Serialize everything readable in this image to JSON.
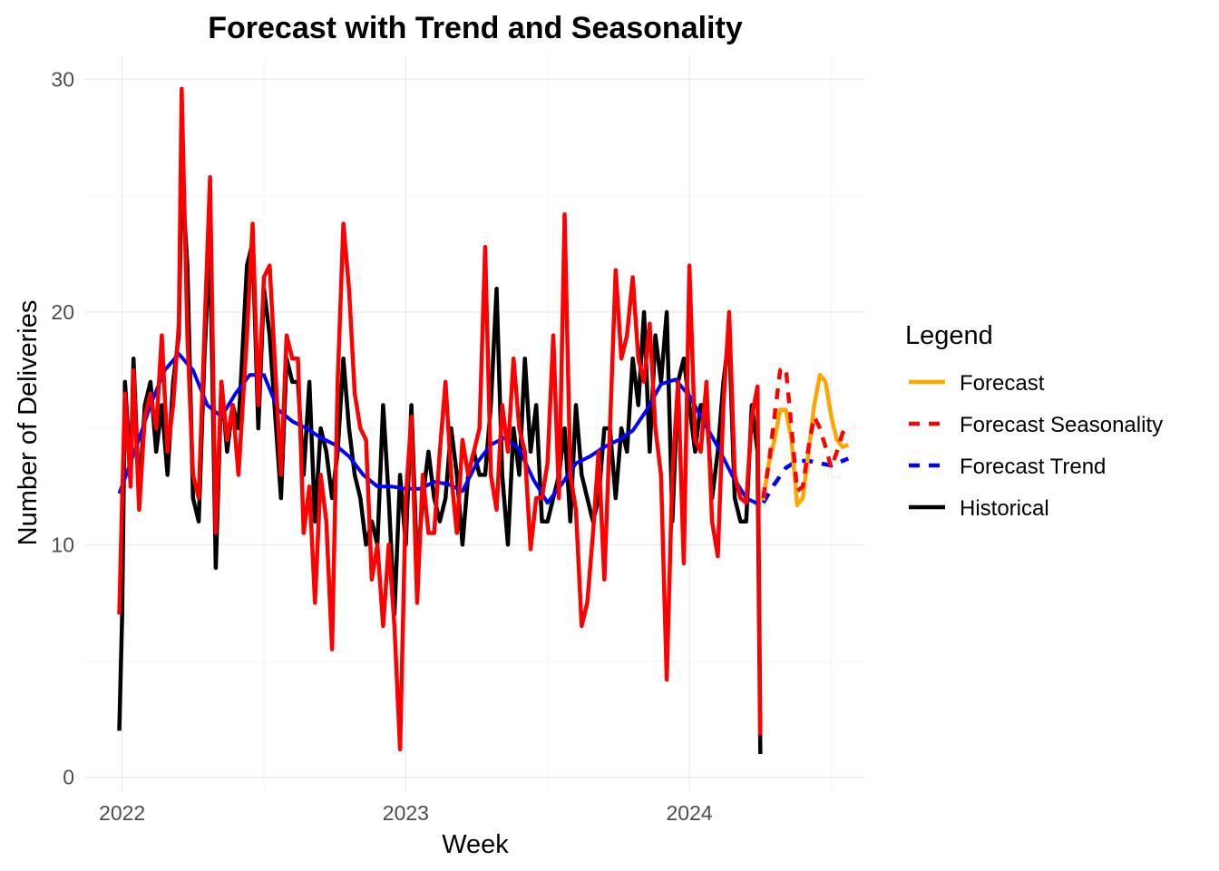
{
  "chart_data": {
    "type": "line",
    "title": "Forecast with Trend and Seasonality",
    "xlabel": "Week",
    "ylabel": "Number of Deliveries",
    "x_ticks": [
      "2022",
      "2023",
      "2024"
    ],
    "x_tick_positions": [
      2022.0,
      2023.0,
      2024.0
    ],
    "y_ticks": [
      0,
      10,
      20,
      30
    ],
    "xlim": [
      2021.87,
      2024.62
    ],
    "ylim": [
      -0.6,
      31.0
    ],
    "grid": true,
    "legend": {
      "title": "Legend",
      "placement": "right",
      "entries": [
        {
          "label": "Forecast",
          "color": "#FFA500",
          "dash": "solid"
        },
        {
          "label": "Forecast Seasonality",
          "color": "#FF0000",
          "dash": "dashed"
        },
        {
          "label": "Forecast Trend",
          "color": "#0000FF",
          "dash": "dashed"
        },
        {
          "label": "Historical",
          "color": "#000000",
          "dash": "solid"
        }
      ]
    },
    "historical": {
      "color": "#000000",
      "points": [
        [
          2021.99,
          2
        ],
        [
          2022.0,
          7
        ],
        [
          2022.01,
          17
        ],
        [
          2022.03,
          13
        ],
        [
          2022.04,
          18
        ],
        [
          2022.06,
          12
        ],
        [
          2022.08,
          16
        ],
        [
          2022.1,
          17
        ],
        [
          2022.12,
          14
        ],
        [
          2022.14,
          16
        ],
        [
          2022.16,
          13
        ],
        [
          2022.18,
          17
        ],
        [
          2022.2,
          19
        ],
        [
          2022.21,
          26
        ],
        [
          2022.23,
          22
        ],
        [
          2022.25,
          12
        ],
        [
          2022.27,
          11
        ],
        [
          2022.29,
          18
        ],
        [
          2022.31,
          23
        ],
        [
          2022.33,
          9
        ],
        [
          2022.35,
          17
        ],
        [
          2022.37,
          14
        ],
        [
          2022.39,
          16
        ],
        [
          2022.41,
          15
        ],
        [
          2022.44,
          22
        ],
        [
          2022.46,
          23
        ],
        [
          2022.48,
          15
        ],
        [
          2022.5,
          21
        ],
        [
          2022.52,
          19
        ],
        [
          2022.56,
          12
        ],
        [
          2022.58,
          18
        ],
        [
          2022.6,
          17
        ],
        [
          2022.62,
          17
        ],
        [
          2022.64,
          13
        ],
        [
          2022.66,
          17
        ],
        [
          2022.68,
          11
        ],
        [
          2022.7,
          15
        ],
        [
          2022.72,
          14
        ],
        [
          2022.74,
          12
        ],
        [
          2022.76,
          14
        ],
        [
          2022.78,
          18
        ],
        [
          2022.8,
          15
        ],
        [
          2022.82,
          13
        ],
        [
          2022.84,
          12
        ],
        [
          2022.86,
          10
        ],
        [
          2022.88,
          11
        ],
        [
          2022.9,
          10
        ],
        [
          2022.92,
          16
        ],
        [
          2022.94,
          12
        ],
        [
          2022.96,
          7
        ],
        [
          2022.98,
          13
        ],
        [
          2023.0,
          10
        ],
        [
          2023.02,
          16
        ],
        [
          2023.04,
          9
        ],
        [
          2023.06,
          12
        ],
        [
          2023.08,
          14
        ],
        [
          2023.1,
          12
        ],
        [
          2023.12,
          11
        ],
        [
          2023.14,
          12
        ],
        [
          2023.16,
          15
        ],
        [
          2023.18,
          13
        ],
        [
          2023.2,
          10
        ],
        [
          2023.22,
          13
        ],
        [
          2023.24,
          14
        ],
        [
          2023.26,
          13
        ],
        [
          2023.28,
          13
        ],
        [
          2023.3,
          16
        ],
        [
          2023.32,
          21
        ],
        [
          2023.34,
          13
        ],
        [
          2023.36,
          10
        ],
        [
          2023.38,
          15
        ],
        [
          2023.4,
          13
        ],
        [
          2023.42,
          18
        ],
        [
          2023.44,
          14
        ],
        [
          2023.46,
          16
        ],
        [
          2023.48,
          11
        ],
        [
          2023.5,
          11
        ],
        [
          2023.52,
          12
        ],
        [
          2023.54,
          13
        ],
        [
          2023.56,
          15
        ],
        [
          2023.58,
          11
        ],
        [
          2023.6,
          16
        ],
        [
          2023.62,
          13
        ],
        [
          2023.64,
          12
        ],
        [
          2023.66,
          11
        ],
        [
          2023.68,
          12
        ],
        [
          2023.7,
          15
        ],
        [
          2023.72,
          15
        ],
        [
          2023.74,
          12
        ],
        [
          2023.76,
          15
        ],
        [
          2023.78,
          14
        ],
        [
          2023.8,
          18
        ],
        [
          2023.82,
          16
        ],
        [
          2023.84,
          20
        ],
        [
          2023.86,
          14
        ],
        [
          2023.88,
          19
        ],
        [
          2023.9,
          17
        ],
        [
          2023.92,
          20
        ],
        [
          2023.94,
          11
        ],
        [
          2023.96,
          17
        ],
        [
          2023.98,
          18
        ],
        [
          2024.0,
          16
        ],
        [
          2024.02,
          14
        ],
        [
          2024.04,
          16
        ],
        [
          2024.06,
          16
        ],
        [
          2024.08,
          12
        ],
        [
          2024.1,
          14
        ],
        [
          2024.12,
          17
        ],
        [
          2024.14,
          19
        ],
        [
          2024.16,
          12
        ],
        [
          2024.18,
          11
        ],
        [
          2024.2,
          11
        ],
        [
          2024.22,
          16
        ],
        [
          2024.24,
          14
        ],
        [
          2024.25,
          1
        ]
      ]
    },
    "seasonality_history": {
      "color": "#FF0000",
      "points": [
        [
          2021.99,
          7
        ],
        [
          2022.0,
          12
        ],
        [
          2022.01,
          16.5
        ],
        [
          2022.03,
          12.5
        ],
        [
          2022.04,
          17.5
        ],
        [
          2022.06,
          11.5
        ],
        [
          2022.08,
          15.5
        ],
        [
          2022.1,
          16.5
        ],
        [
          2022.12,
          15
        ],
        [
          2022.14,
          19
        ],
        [
          2022.16,
          14
        ],
        [
          2022.18,
          16
        ],
        [
          2022.2,
          19.5
        ],
        [
          2022.21,
          29.6
        ],
        [
          2022.23,
          19
        ],
        [
          2022.25,
          13
        ],
        [
          2022.27,
          12
        ],
        [
          2022.29,
          19
        ],
        [
          2022.31,
          25.8
        ],
        [
          2022.33,
          10.5
        ],
        [
          2022.35,
          17
        ],
        [
          2022.37,
          14.5
        ],
        [
          2022.39,
          16
        ],
        [
          2022.41,
          13
        ],
        [
          2022.44,
          19
        ],
        [
          2022.46,
          23.8
        ],
        [
          2022.48,
          16
        ],
        [
          2022.5,
          21.5
        ],
        [
          2022.52,
          22
        ],
        [
          2022.56,
          13
        ],
        [
          2022.58,
          19
        ],
        [
          2022.6,
          18
        ],
        [
          2022.62,
          18
        ],
        [
          2022.64,
          10.5
        ],
        [
          2022.66,
          12.5
        ],
        [
          2022.68,
          7.5
        ],
        [
          2022.7,
          13
        ],
        [
          2022.72,
          11
        ],
        [
          2022.74,
          5.5
        ],
        [
          2022.76,
          17
        ],
        [
          2022.78,
          23.8
        ],
        [
          2022.8,
          21
        ],
        [
          2022.82,
          16.5
        ],
        [
          2022.84,
          15
        ],
        [
          2022.86,
          14.5
        ],
        [
          2022.88,
          8.5
        ],
        [
          2022.9,
          10
        ],
        [
          2022.92,
          6.5
        ],
        [
          2022.94,
          10
        ],
        [
          2022.96,
          6.5
        ],
        [
          2022.98,
          1.2
        ],
        [
          2023.0,
          12
        ],
        [
          2023.02,
          15.5
        ],
        [
          2023.04,
          7.5
        ],
        [
          2023.06,
          13
        ],
        [
          2023.08,
          10.5
        ],
        [
          2023.1,
          10.5
        ],
        [
          2023.12,
          14
        ],
        [
          2023.14,
          17
        ],
        [
          2023.16,
          13
        ],
        [
          2023.18,
          10.5
        ],
        [
          2023.2,
          14.5
        ],
        [
          2023.22,
          13
        ],
        [
          2023.24,
          14
        ],
        [
          2023.26,
          15
        ],
        [
          2023.28,
          22.8
        ],
        [
          2023.3,
          13
        ],
        [
          2023.32,
          11.5
        ],
        [
          2023.34,
          16
        ],
        [
          2023.36,
          14
        ],
        [
          2023.38,
          18
        ],
        [
          2023.4,
          15
        ],
        [
          2023.42,
          14
        ],
        [
          2023.44,
          9.8
        ],
        [
          2023.46,
          12
        ],
        [
          2023.48,
          12
        ],
        [
          2023.5,
          13.5
        ],
        [
          2023.52,
          19
        ],
        [
          2023.54,
          12
        ],
        [
          2023.56,
          24.2
        ],
        [
          2023.58,
          13
        ],
        [
          2023.6,
          11.5
        ],
        [
          2023.62,
          6.5
        ],
        [
          2023.64,
          7.5
        ],
        [
          2023.66,
          10.5
        ],
        [
          2023.68,
          14
        ],
        [
          2023.7,
          8.5
        ],
        [
          2023.72,
          15
        ],
        [
          2023.74,
          21.8
        ],
        [
          2023.76,
          18
        ],
        [
          2023.78,
          19
        ],
        [
          2023.8,
          21.5
        ],
        [
          2023.82,
          18
        ],
        [
          2023.84,
          17
        ],
        [
          2023.86,
          19.5
        ],
        [
          2023.88,
          15
        ],
        [
          2023.9,
          13
        ],
        [
          2023.92,
          4.2
        ],
        [
          2023.94,
          13
        ],
        [
          2023.96,
          17
        ],
        [
          2023.98,
          9.2
        ],
        [
          2024.0,
          22
        ],
        [
          2024.02,
          14.5
        ],
        [
          2024.04,
          14
        ],
        [
          2024.06,
          17
        ],
        [
          2024.08,
          11
        ],
        [
          2024.1,
          9.5
        ],
        [
          2024.12,
          16
        ],
        [
          2024.14,
          20
        ],
        [
          2024.16,
          13
        ],
        [
          2024.18,
          12
        ],
        [
          2024.2,
          11.8
        ],
        [
          2024.22,
          15.5
        ],
        [
          2024.24,
          16.8
        ],
        [
          2024.25,
          1.8
        ]
      ]
    },
    "trend_history": {
      "color": "#0000FF",
      "points": [
        [
          2021.99,
          12.2
        ],
        [
          2022.05,
          14.2
        ],
        [
          2022.1,
          16
        ],
        [
          2022.15,
          17.5
        ],
        [
          2022.2,
          18.2
        ],
        [
          2022.25,
          17.5
        ],
        [
          2022.3,
          16
        ],
        [
          2022.35,
          15.5
        ],
        [
          2022.4,
          16.5
        ],
        [
          2022.45,
          17.3
        ],
        [
          2022.5,
          17.3
        ],
        [
          2022.55,
          15.8
        ],
        [
          2022.6,
          15.3
        ],
        [
          2022.65,
          15
        ],
        [
          2022.7,
          14.6
        ],
        [
          2022.75,
          14.3
        ],
        [
          2022.8,
          13.8
        ],
        [
          2022.85,
          13
        ],
        [
          2022.9,
          12.5
        ],
        [
          2022.95,
          12.5
        ],
        [
          2023.0,
          12.4
        ],
        [
          2023.05,
          12.4
        ],
        [
          2023.1,
          12.7
        ],
        [
          2023.15,
          12.6
        ],
        [
          2023.2,
          12.3
        ],
        [
          2023.25,
          13.5
        ],
        [
          2023.3,
          14.3
        ],
        [
          2023.35,
          14.6
        ],
        [
          2023.4,
          14.1
        ],
        [
          2023.45,
          12.8
        ],
        [
          2023.5,
          11.8
        ],
        [
          2023.55,
          12.6
        ],
        [
          2023.6,
          13.5
        ],
        [
          2023.65,
          13.8
        ],
        [
          2023.7,
          14.2
        ],
        [
          2023.75,
          14.5
        ],
        [
          2023.8,
          14.9
        ],
        [
          2023.85,
          15.8
        ],
        [
          2023.9,
          16.9
        ],
        [
          2023.95,
          17.1
        ],
        [
          2024.0,
          16.4
        ],
        [
          2024.05,
          15.3
        ],
        [
          2024.1,
          14.2
        ],
        [
          2024.15,
          13
        ],
        [
          2024.2,
          12
        ],
        [
          2024.25,
          11.7
        ]
      ]
    },
    "forecast": {
      "color": "#FFA500",
      "points": [
        [
          2024.26,
          11.9
        ],
        [
          2024.28,
          13.5
        ],
        [
          2024.3,
          14.5
        ],
        [
          2024.32,
          15.8
        ],
        [
          2024.34,
          15.8
        ],
        [
          2024.36,
          14.5
        ],
        [
          2024.38,
          11.7
        ],
        [
          2024.4,
          12
        ],
        [
          2024.42,
          14
        ],
        [
          2024.44,
          16
        ],
        [
          2024.46,
          17.3
        ],
        [
          2024.48,
          17
        ],
        [
          2024.5,
          15.5
        ],
        [
          2024.52,
          14.5
        ],
        [
          2024.54,
          14.2
        ],
        [
          2024.56,
          14.3
        ]
      ]
    },
    "forecast_seasonality": {
      "color": "#FF0000",
      "points": [
        [
          2024.26,
          12
        ],
        [
          2024.28,
          13.5
        ],
        [
          2024.3,
          15.5
        ],
        [
          2024.32,
          17.5
        ],
        [
          2024.34,
          17.6
        ],
        [
          2024.36,
          15
        ],
        [
          2024.38,
          12.3
        ],
        [
          2024.4,
          12.5
        ],
        [
          2024.42,
          14.2
        ],
        [
          2024.44,
          15.5
        ],
        [
          2024.46,
          15
        ],
        [
          2024.48,
          14.2
        ],
        [
          2024.5,
          13.3
        ],
        [
          2024.52,
          14
        ],
        [
          2024.54,
          14.8
        ],
        [
          2024.56,
          15.2
        ]
      ]
    },
    "forecast_trend": {
      "color": "#0000FF",
      "points": [
        [
          2024.26,
          11.8
        ],
        [
          2024.3,
          12.6
        ],
        [
          2024.34,
          13.3
        ],
        [
          2024.38,
          13.6
        ],
        [
          2024.42,
          13.6
        ],
        [
          2024.46,
          13.5
        ],
        [
          2024.5,
          13.4
        ],
        [
          2024.54,
          13.6
        ],
        [
          2024.56,
          13.7
        ]
      ]
    }
  }
}
